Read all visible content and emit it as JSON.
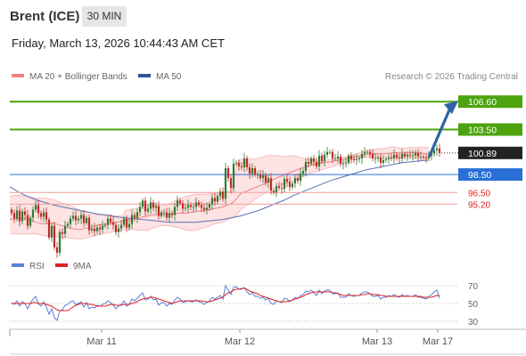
{
  "header": {
    "instrument": "Brent (ICE)",
    "interval": "30 MIN",
    "datetime": "Friday, March 13, 2026 10:44:43 AM CET"
  },
  "legend": {
    "ma20": {
      "label": "MA 20 + Bollinger Bands",
      "color": "#f08080"
    },
    "ma50": {
      "label": "MA 50",
      "color": "#2f5597"
    },
    "rsi": {
      "label": "RSI",
      "color": "#5a7fd6"
    },
    "ma9": {
      "label": "9MA",
      "color": "#e02020"
    }
  },
  "copyright": "Research © 2026 Trading Central",
  "colors": {
    "resistance": "#4ca30d",
    "pivot": "#2a6fd6",
    "support": "#e0231b",
    "candle_up": "#2e7d32",
    "candle_down": "#c62828",
    "band_fill": "#fde0e0",
    "current_price_bg": "#222222"
  },
  "chart_data": [
    {
      "type": "candlestick",
      "x_labels": [
        "Mar 11",
        "Mar 12",
        "Mar 13",
        "Mar 17"
      ],
      "ylim": [
        90.0,
        108.4
      ],
      "current_price": "100.89",
      "levels": [
        {
          "value": 106.6,
          "label": "106.60",
          "kind": "resistance"
        },
        {
          "value": 103.5,
          "label": "103.50",
          "kind": "resistance"
        },
        {
          "value": 98.5,
          "label": "98.50",
          "kind": "pivot"
        },
        {
          "value": 96.5,
          "label": "96.50",
          "kind": "support"
        },
        {
          "value": 95.2,
          "label": "95.20",
          "kind": "support"
        }
      ],
      "close": [
        94.2,
        93.6,
        94.5,
        93.3,
        94.4,
        94.0,
        92.8,
        93.7,
        94.6,
        95.1,
        94.2,
        93.8,
        94.3,
        93.5,
        91.5,
        92.8,
        90.4,
        89.8,
        92.1,
        91.9,
        92.8,
        93.0,
        93.6,
        93.9,
        93.4,
        93.6,
        94.0,
        93.1,
        93.7,
        92.3,
        92.5,
        92.2,
        92.6,
        92.4,
        92.8,
        92.9,
        93.6,
        93.2,
        92.9,
        92.1,
        92.5,
        92.9,
        93.6,
        92.6,
        93.0,
        94.0,
        93.7,
        94.3,
        94.9,
        95.6,
        94.4,
        94.7,
        95.4,
        94.8,
        95.0,
        93.9,
        94.3,
        94.3,
        93.7,
        94.2,
        94.0,
        94.9,
        95.6,
        95.3,
        94.7,
        94.8,
        95.1,
        94.9,
        94.9,
        95.4,
        95.1,
        94.8,
        94.6,
        94.8,
        95.2,
        95.9,
        95.5,
        96.1,
        96.6,
        95.8,
        99.2,
        98.1,
        97.0,
        99.7,
        99.8,
        99.4,
        99.3,
        100.3,
        99.3,
        98.6,
        99.2,
        98.5,
        98.5,
        98.1,
        98.4,
        97.6,
        98.1,
        96.7,
        96.5,
        97.2,
        97.0,
        96.9,
        98.0,
        97.7,
        97.1,
        97.5,
        98.1,
        97.8,
        98.6,
        98.9,
        99.9,
        99.7,
        100.3,
        99.9,
        99.4,
        100.6,
        100.0,
        100.7,
        101.0,
        101.0,
        100.3,
        100.3,
        100.5,
        99.7,
        99.7,
        99.8,
        100.6,
        100.2,
        100.1,
        100.2,
        100.3,
        100.8,
        101.0,
        101.0,
        100.8,
        100.3,
        100.3,
        100.4,
        99.8,
        100.1,
        100.2,
        100.4,
        100.3,
        100.7,
        100.4,
        100.3,
        100.8,
        100.5,
        100.7,
        100.6,
        100.6,
        100.9,
        100.5,
        100.5,
        100.4,
        100.3,
        100.6,
        100.8,
        101.2,
        101.4,
        100.9
      ],
      "bands": {
        "x": [
          0,
          10,
          20,
          30,
          40,
          50,
          60,
          70,
          80,
          90,
          100,
          110,
          120,
          130,
          138,
          140,
          150,
          158,
          160,
          166,
          170,
          180,
          190,
          200,
          210,
          220,
          230,
          240,
          250,
          260,
          266,
          270,
          280,
          290,
          300,
          310,
          320,
          330,
          340,
          350,
          360,
          370,
          380,
          390,
          400,
          410,
          420,
          430,
          440,
          450,
          460,
          470,
          480,
          490,
          500,
          510,
          520,
          530,
          540,
          550,
          560,
          570,
          580,
          590,
          600
        ],
        "upper": [
          96.0,
          96.1,
          96.2,
          96.1,
          95.9,
          95.9,
          95.7,
          95.3,
          95.0,
          94.5,
          94.3,
          94.0,
          94.0,
          93.9,
          93.9,
          94.5,
          94.7,
          94.9,
          94.9,
          95.2,
          95.2,
          95.0,
          95.2,
          95.8,
          96.1,
          96.3,
          96.3,
          96.4,
          96.5,
          96.7,
          99.8,
          100.2,
          100.2,
          100.3,
          100.6,
          100.6,
          100.5,
          100.6,
          100.3,
          100.2,
          99.9,
          100.2,
          100.3,
          100.5,
          100.8,
          101.1,
          101.3,
          101.4,
          101.6,
          101.4,
          101.5,
          101.5,
          101.5,
          101.4,
          101.2,
          101.3,
          101.3,
          101.3,
          101.5,
          101.5,
          101.5,
          101.6,
          101.8,
          102.0,
          102.1
        ],
        "middle": [
          93.5,
          93.5,
          93.6,
          93.6,
          93.2,
          93.0,
          93.1,
          92.8,
          92.5,
          92.4,
          92.6,
          92.9,
          93.0,
          93.2,
          93.3,
          93.4,
          93.6,
          93.7,
          93.8,
          93.9,
          94.0,
          94.1,
          94.1,
          94.2,
          94.2,
          94.4,
          94.5,
          94.7,
          94.9,
          95.3,
          95.9,
          96.4,
          96.8,
          97.2,
          97.6,
          98.1,
          98.5,
          98.9,
          99.3,
          99.6,
          99.8,
          99.9,
          100.1,
          100.3,
          100.5,
          100.7,
          100.8,
          100.8,
          100.9,
          100.9,
          100.9,
          100.9,
          100.8,
          100.8,
          100.8,
          100.9,
          101.0,
          101.1,
          101.2,
          101.3,
          101.4,
          101.5,
          101.6,
          101.6,
          101.7
        ],
        "lower": [
          91.7,
          91.9,
          91.9,
          91.9,
          91.9,
          91.7,
          91.6,
          91.5,
          91.4,
          91.3,
          91.5,
          91.8,
          92.0,
          92.2,
          92.3,
          92.4,
          92.4,
          92.3,
          92.3,
          92.3,
          92.5,
          92.8,
          92.8,
          92.6,
          92.3,
          92.3,
          92.6,
          93.0,
          93.2,
          93.7,
          94.0,
          94.6,
          95.3,
          96.0,
          96.6,
          97.1,
          97.5,
          97.8,
          98.3,
          98.7,
          99.0,
          99.3,
          99.6,
          100.0,
          100.3,
          100.4,
          100.4,
          100.3,
          100.3,
          100.3,
          100.3,
          100.3,
          100.2,
          100.3,
          100.4,
          100.5,
          100.7,
          100.9,
          101.0,
          101.1,
          101.2,
          101.3,
          101.3,
          101.4,
          101.4
        ]
      },
      "ma50": {
        "x": [
          0,
          10,
          20,
          30,
          40,
          50,
          60,
          70,
          80,
          90,
          100,
          110,
          120,
          130,
          140,
          150,
          160,
          170,
          180,
          190,
          200,
          210,
          220,
          230,
          240,
          250,
          260,
          270,
          280,
          290,
          300,
          310,
          320,
          330,
          340,
          350,
          360,
          370,
          380,
          390,
          400,
          410,
          420,
          430,
          440,
          450,
          460,
          470,
          480
        ],
        "values": [
          97.6,
          97.2,
          96.6,
          96.1,
          95.7,
          95.4,
          95.1,
          94.9,
          94.7,
          94.5,
          94.3,
          94.1,
          94.0,
          93.8,
          93.7,
          93.6,
          93.5,
          93.4,
          93.3,
          93.2,
          93.2,
          93.2,
          93.2,
          93.3,
          93.4,
          93.5,
          93.7,
          93.9,
          94.2,
          94.5,
          94.9,
          95.3,
          95.7,
          96.2,
          96.6,
          97.0,
          97.4,
          97.8,
          98.1,
          98.4,
          98.7,
          99.0,
          99.2,
          99.4,
          99.6,
          99.8,
          99.9,
          100.0,
          100.1
        ]
      },
      "projection": {
        "from": 100.89,
        "to": 106.6
      }
    },
    {
      "type": "line",
      "title": "RSI",
      "ylim": [
        25,
        77
      ],
      "y_ticks": [
        70,
        50,
        30
      ],
      "rsi": [
        51,
        49,
        53,
        47,
        52,
        50,
        44,
        50,
        55,
        58,
        50,
        47,
        52,
        46,
        38,
        44,
        34,
        31,
        42,
        43,
        48,
        49,
        52,
        53,
        49,
        50,
        52,
        46,
        51,
        44,
        46,
        45,
        48,
        47,
        49,
        50,
        53,
        51,
        48,
        44,
        47,
        49,
        53,
        47,
        49,
        55,
        53,
        56,
        59,
        62,
        54,
        55,
        58,
        54,
        55,
        48,
        51,
        51,
        47,
        50,
        49,
        54,
        57,
        55,
        51,
        52,
        53,
        52,
        52,
        54,
        52,
        51,
        49,
        51,
        53,
        57,
        55,
        57,
        59,
        55,
        70,
        65,
        60,
        68,
        69,
        66,
        66,
        68,
        63,
        60,
        62,
        58,
        58,
        56,
        57,
        54,
        56,
        50,
        49,
        53,
        52,
        51,
        56,
        55,
        52,
        54,
        57,
        55,
        59,
        60,
        64,
        63,
        65,
        62,
        59,
        65,
        61,
        64,
        65,
        65,
        61,
        61,
        62,
        57,
        57,
        57,
        61,
        59,
        58,
        59,
        59,
        62,
        63,
        63,
        61,
        58,
        58,
        59,
        55,
        57,
        57,
        59,
        58,
        60,
        58,
        57,
        60,
        58,
        59,
        58,
        58,
        60,
        57,
        57,
        56,
        55,
        58,
        60,
        63,
        65,
        56
      ],
      "ma9": [
        50,
        50,
        50,
        50,
        50,
        50,
        50,
        50,
        51,
        51,
        50,
        50,
        50,
        49,
        48,
        47,
        45,
        43,
        42,
        42,
        42,
        42,
        44,
        46,
        48,
        49,
        50,
        50,
        50,
        49,
        49,
        48,
        47,
        47,
        47,
        47,
        48,
        49,
        49,
        48,
        48,
        48,
        49,
        49,
        49,
        50,
        51,
        52,
        54,
        55,
        56,
        56,
        57,
        57,
        56,
        55,
        54,
        53,
        52,
        51,
        50,
        51,
        52,
        53,
        53,
        53,
        53,
        53,
        53,
        53,
        53,
        53,
        52,
        52,
        52,
        53,
        54,
        55,
        56,
        57,
        60,
        62,
        63,
        65,
        66,
        66,
        67,
        67,
        66,
        64,
        63,
        62,
        61,
        59,
        58,
        57,
        56,
        55,
        54,
        53,
        52,
        52,
        52,
        52,
        53,
        54,
        55,
        56,
        57,
        58,
        60,
        61,
        62,
        63,
        63,
        63,
        63,
        63,
        63,
        63,
        62,
        62,
        61,
        60,
        59,
        59,
        59,
        59,
        59,
        59,
        59,
        60,
        60,
        61,
        61,
        60,
        60,
        60,
        59,
        59,
        58,
        58,
        58,
        58,
        58,
        58,
        58,
        58,
        58,
        58,
        58,
        58,
        58,
        58,
        57,
        57,
        57,
        57,
        58,
        59,
        59
      ]
    }
  ]
}
